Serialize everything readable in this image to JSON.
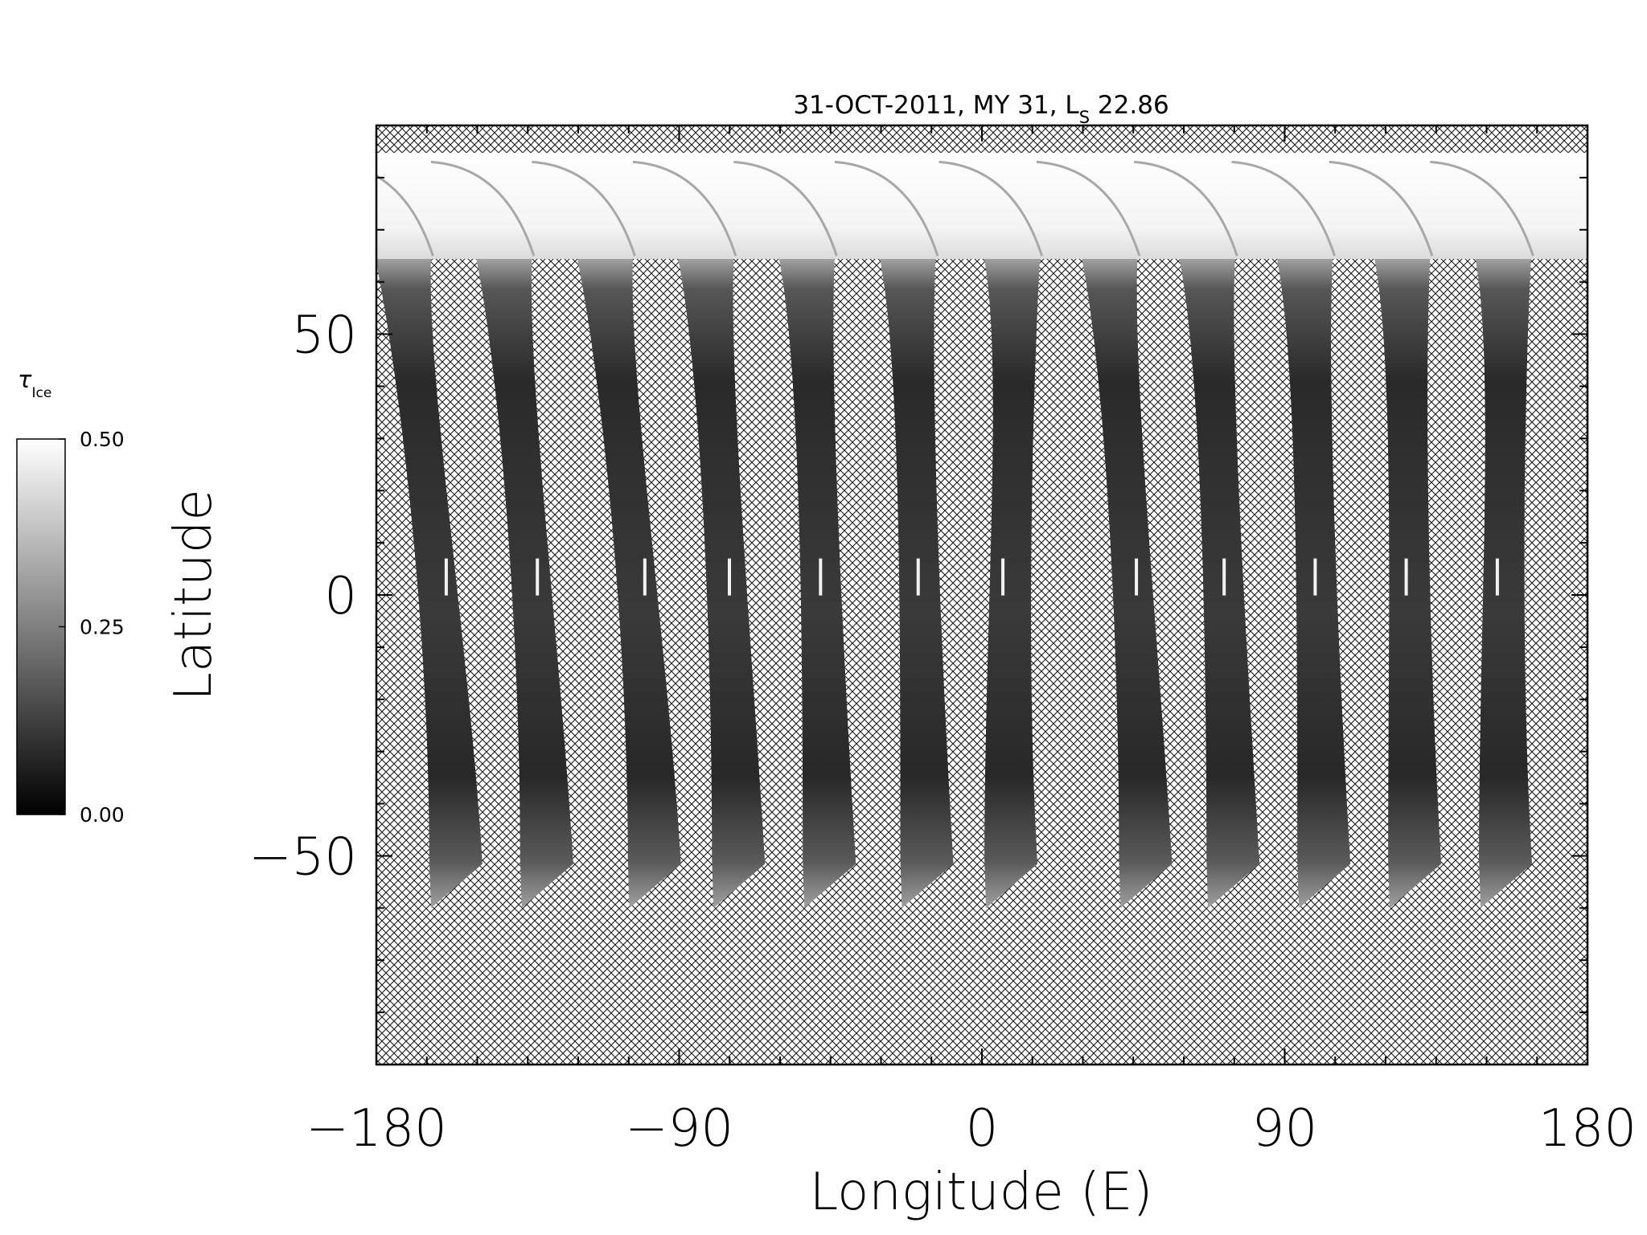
{
  "chart_data": {
    "type": "heatmap",
    "title_parts": {
      "prefix": "31-OCT-2011, MY 31,  L",
      "subscript": "S",
      "suffix": " 22.86"
    },
    "xlabel": "Longitude (E)",
    "ylabel": "Latitude",
    "xlim": [
      -180,
      180
    ],
    "ylim": [
      -90,
      90
    ],
    "xticks": [
      {
        "value": -180,
        "label": "−180"
      },
      {
        "value": -90,
        "label": "−90"
      },
      {
        "value": 0,
        "label": "0"
      },
      {
        "value": 90,
        "label": "90"
      },
      {
        "value": 180,
        "label": "180"
      }
    ],
    "yticks": [
      {
        "value": -50,
        "label": "−50"
      },
      {
        "value": 0,
        "label": "0"
      },
      {
        "value": 50,
        "label": "50"
      }
    ],
    "colorbar": {
      "symbol": "τ",
      "subscript": "Ice",
      "min": 0.0,
      "max": 0.5,
      "ticks": [
        {
          "value": 0.0,
          "label": "0.00"
        },
        {
          "value": 0.25,
          "label": "0.25"
        },
        {
          "value": 0.5,
          "label": "0.50"
        }
      ],
      "colormap": "grayscale"
    },
    "no_data_fill": "crosshatch",
    "polar_cap_lat_range": [
      65,
      90
    ],
    "swaths": [
      {
        "lon_top": -167,
        "lon_bottom": -159,
        "lat_south": -60
      },
      {
        "lon_top": -137,
        "lon_bottom": -132,
        "lat_south": -60
      },
      {
        "lon_top": -107,
        "lon_bottom": -100,
        "lat_south": -60
      },
      {
        "lon_top": -77,
        "lon_bottom": -75,
        "lat_south": -60
      },
      {
        "lon_top": -47,
        "lon_bottom": -48,
        "lat_south": -60
      },
      {
        "lon_top": -17,
        "lon_bottom": -19,
        "lat_south": -60
      },
      {
        "lon_top": 14,
        "lon_bottom": 6,
        "lat_south": -60
      },
      {
        "lon_top": 43,
        "lon_bottom": 46,
        "lat_south": -60
      },
      {
        "lon_top": 72,
        "lon_bottom": 72,
        "lat_south": -60
      },
      {
        "lon_top": 101,
        "lon_bottom": 99,
        "lat_south": -60
      },
      {
        "lon_top": 130,
        "lon_bottom": 126,
        "lat_south": -60
      },
      {
        "lon_top": 160,
        "lon_bottom": 153,
        "lat_south": -60
      }
    ]
  },
  "colors": {
    "hatch": "#1a1a1a",
    "background": "#ffffff",
    "frame": "#000000"
  }
}
